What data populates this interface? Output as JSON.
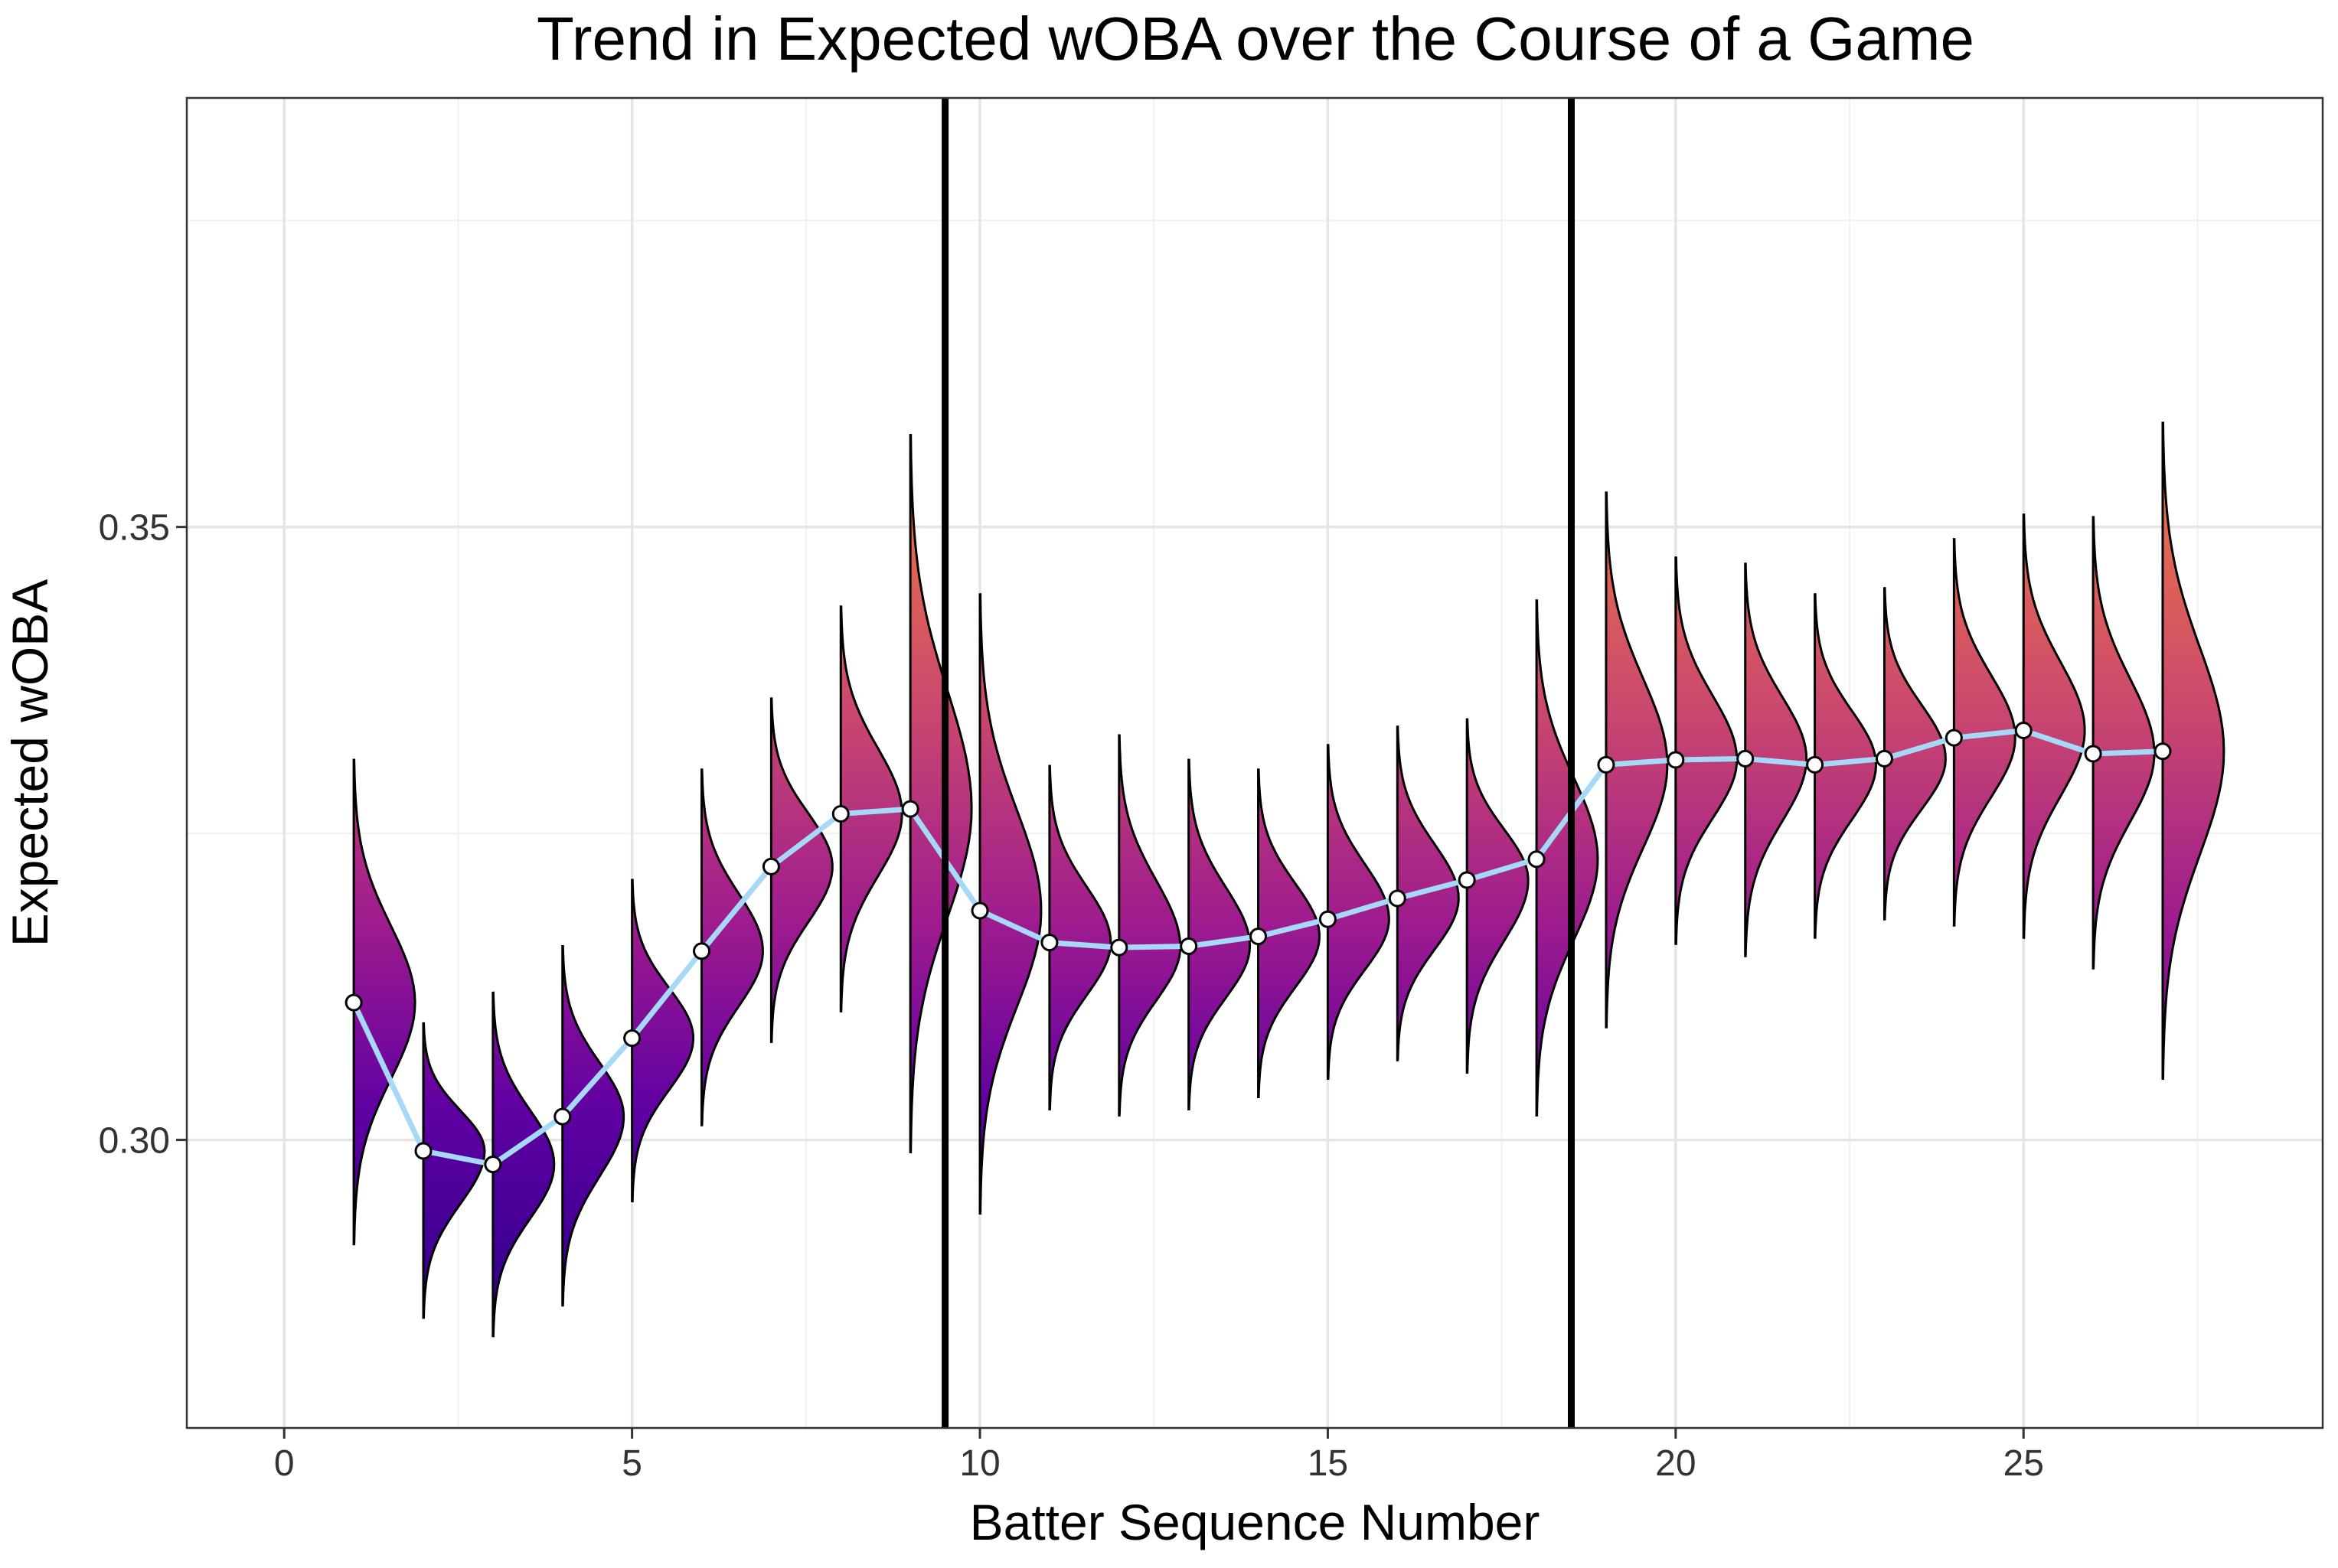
{
  "chart_data": {
    "type": "line",
    "title": "Trend in Expected wOBA over the Course of a Game",
    "xlabel": "Batter Sequence Number",
    "ylabel": "Expected wOBA",
    "xlim": [
      -1.4,
      29.3
    ],
    "ylim": [
      0.2765,
      0.385
    ],
    "x_ticks": [
      0,
      5,
      10,
      15,
      20,
      25
    ],
    "x_tick_labels": [
      "0",
      "5",
      "10",
      "15",
      "20",
      "25"
    ],
    "y_ticks": [
      0.3,
      0.35
    ],
    "y_tick_labels": [
      "0.30",
      "0.35"
    ],
    "grid": true,
    "vertical_lines": [
      9.5,
      18.5
    ],
    "series": [
      {
        "x": [
          1,
          2,
          3,
          4,
          5,
          6,
          7,
          8,
          9,
          10,
          11,
          12,
          13,
          14,
          15,
          16,
          17,
          18,
          19,
          20,
          21,
          22,
          23,
          24,
          25,
          26,
          27
        ],
        "values": [
          0.3112,
          0.2991,
          0.298,
          0.3019,
          0.3083,
          0.3154,
          0.3223,
          0.3266,
          0.327,
          0.3187,
          0.3161,
          0.3157,
          0.3158,
          0.3166,
          0.318,
          0.3197,
          0.3212,
          0.3229,
          0.3306,
          0.331,
          0.3311,
          0.3306,
          0.3311,
          0.3328,
          0.3334,
          0.3315,
          0.3317
        ]
      }
    ],
    "distributions": [
      {
        "x": 1,
        "min": 0.2915,
        "max": 0.331,
        "mode": 0.3112
      },
      {
        "x": 2,
        "min": 0.2855,
        "max": 0.3095,
        "mode": 0.2991
      },
      {
        "x": 3,
        "min": 0.284,
        "max": 0.312,
        "mode": 0.298
      },
      {
        "x": 4,
        "min": 0.2865,
        "max": 0.3158,
        "mode": 0.3019
      },
      {
        "x": 5,
        "min": 0.295,
        "max": 0.3212,
        "mode": 0.3083
      },
      {
        "x": 6,
        "min": 0.3012,
        "max": 0.3302,
        "mode": 0.3154
      },
      {
        "x": 7,
        "min": 0.308,
        "max": 0.336,
        "mode": 0.3223
      },
      {
        "x": 8,
        "min": 0.3105,
        "max": 0.3435,
        "mode": 0.3266
      },
      {
        "x": 9,
        "min": 0.299,
        "max": 0.3575,
        "mode": 0.327
      },
      {
        "x": 10,
        "min": 0.294,
        "max": 0.3445,
        "mode": 0.3187
      },
      {
        "x": 11,
        "min": 0.3025,
        "max": 0.3305,
        "mode": 0.3161
      },
      {
        "x": 12,
        "min": 0.302,
        "max": 0.333,
        "mode": 0.3157
      },
      {
        "x": 13,
        "min": 0.3025,
        "max": 0.331,
        "mode": 0.3158
      },
      {
        "x": 14,
        "min": 0.3035,
        "max": 0.3302,
        "mode": 0.3166
      },
      {
        "x": 15,
        "min": 0.305,
        "max": 0.3322,
        "mode": 0.318
      },
      {
        "x": 16,
        "min": 0.3065,
        "max": 0.3337,
        "mode": 0.3197
      },
      {
        "x": 17,
        "min": 0.3055,
        "max": 0.3343,
        "mode": 0.3212
      },
      {
        "x": 18,
        "min": 0.302,
        "max": 0.344,
        "mode": 0.3229
      },
      {
        "x": 19,
        "min": 0.3092,
        "max": 0.3528,
        "mode": 0.3306
      },
      {
        "x": 20,
        "min": 0.316,
        "max": 0.3475,
        "mode": 0.331
      },
      {
        "x": 21,
        "min": 0.315,
        "max": 0.347,
        "mode": 0.3311
      },
      {
        "x": 22,
        "min": 0.3165,
        "max": 0.3445,
        "mode": 0.3306
      },
      {
        "x": 23,
        "min": 0.318,
        "max": 0.345,
        "mode": 0.3311
      },
      {
        "x": 24,
        "min": 0.3175,
        "max": 0.349,
        "mode": 0.3328
      },
      {
        "x": 25,
        "min": 0.3165,
        "max": 0.351,
        "mode": 0.3334
      },
      {
        "x": 26,
        "min": 0.314,
        "max": 0.3508,
        "mode": 0.3315
      },
      {
        "x": 27,
        "min": 0.305,
        "max": 0.3585,
        "mode": 0.3317
      }
    ],
    "colors": {
      "line": "#a6d8f7",
      "gradient_low": "#2a0087",
      "gradient_mid": "#9c1a8f",
      "gradient_high": "#f0803c",
      "grid": "#e5e5e5",
      "divider": "#000000"
    }
  }
}
